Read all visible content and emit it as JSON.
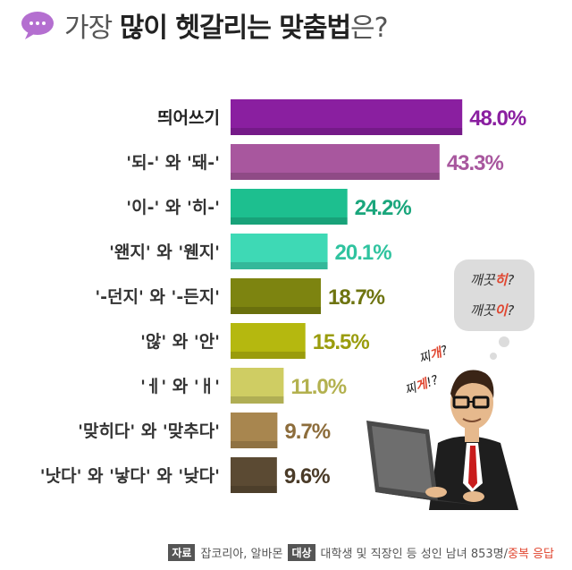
{
  "header": {
    "title_pre": "가장 ",
    "title_bold": "많이 헷갈리는 맞춤법",
    "title_post": "은?"
  },
  "chart_data": {
    "type": "bar",
    "orientation": "horizontal",
    "categories": [
      "띄어쓰기",
      "'되-' 와 '돼-'",
      "'이-' 와 '히-'",
      "'왠지' 와 '웬지'",
      "'-던지' 와 '-든지'",
      "'않' 와 '안'",
      "'ㅔ' 와 'ㅐ'",
      "'맞히다' 와 '맞추다'",
      "'낫다' 와 '낳다' 와 '낮다'"
    ],
    "values": [
      48.0,
      43.3,
      24.2,
      20.1,
      18.7,
      15.5,
      11.0,
      9.7,
      9.6
    ],
    "value_labels": [
      "48.0%",
      "43.3%",
      "24.2%",
      "20.1%",
      "18.7%",
      "15.5%",
      "11.0%",
      "9.7%",
      "9.6%"
    ],
    "colors": [
      "#8a1fa0",
      "#a8579e",
      "#1dbf8f",
      "#3ed9b5",
      "#7d8410",
      "#b5b80f",
      "#cfcd63",
      "#a8864f",
      "#5b4a33"
    ],
    "label_colors": [
      "#8a1fa0",
      "#a8579e",
      "#1aa67c",
      "#2fc39f",
      "#6e7410",
      "#9a9c0d",
      "#b3b14f",
      "#8d6d3c",
      "#4a3b28"
    ],
    "xlim": [
      0,
      50
    ]
  },
  "illustration": {
    "thought_line1_a": "깨끗",
    "thought_line1_b": "히",
    "thought_line1_c": "?",
    "thought_line2_a": "깨끗",
    "thought_line2_b": "이",
    "thought_line2_c": "?",
    "scribble1_a": "찌",
    "scribble1_b": "개",
    "scribble1_c": "?",
    "scribble2_a": "찌",
    "scribble2_b": "게",
    "scribble2_c": "!?"
  },
  "footer": {
    "source_tag": "자료",
    "source": "잡코리아, 알바몬",
    "target_tag": "대상",
    "target": "대학생 및 직장인 등 성인 남녀 853명/",
    "note": "중복 응답"
  }
}
